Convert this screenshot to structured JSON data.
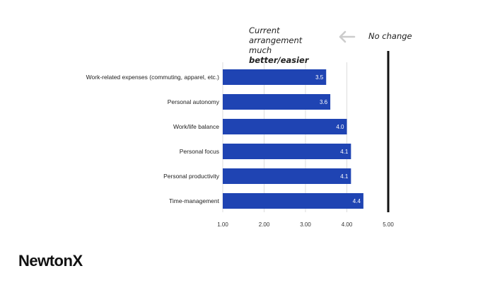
{
  "annotation": {
    "left_line1": "Current arrangement",
    "left_line2_prefix": "much ",
    "left_line2_bold": "better/easier",
    "right": "No change",
    "arrow_icon": "arrow-left-icon"
  },
  "logo": {
    "text": "NewtonX"
  },
  "colors": {
    "bar": "#1f44b3",
    "baseline": "#111111",
    "grid": "#dddddd"
  },
  "chart_data": {
    "type": "bar",
    "orientation": "horizontal",
    "categories": [
      "Work-related expenses (commuting, apparel, etc.)",
      "Personal autonomy",
      "Work/life balance",
      "Personal focus",
      "Personal productivity",
      "Time-management"
    ],
    "values": [
      3.5,
      3.6,
      4.0,
      4.1,
      4.1,
      4.4
    ],
    "value_labels": [
      "3.5",
      "3.6",
      "4.0",
      "4.1",
      "4.1",
      "4.4"
    ],
    "xlim": [
      1,
      5
    ],
    "x_ticks": [
      "1.00",
      "2.00",
      "3.00",
      "4.00",
      "5.00"
    ],
    "reference_line": 5,
    "grid": true
  }
}
